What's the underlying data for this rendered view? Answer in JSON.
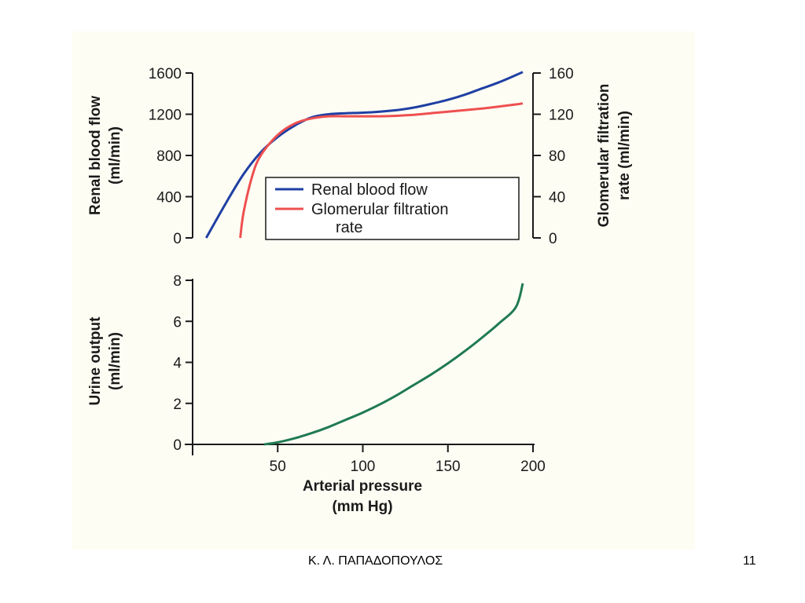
{
  "footer": {
    "author": "Κ. Λ. ΠΑΠΑΔΟΠΟΥΛΟΣ",
    "page_number": "11"
  },
  "chart_data": [
    {
      "type": "line",
      "panel": "top",
      "x_range": [
        0,
        200
      ],
      "ylabel_left": [
        "Renal blood flow",
        "(ml/min)"
      ],
      "ylabel_right": [
        "Glomerular filtration",
        "rate (ml/min)"
      ],
      "ylim_left": [
        0,
        1600
      ],
      "ylim_right": [
        0,
        160
      ],
      "yticks_left": [
        "0",
        "400",
        "800",
        "1200",
        "1600"
      ],
      "yticks_right": [
        "0",
        "40",
        "80",
        "120",
        "160"
      ],
      "legend": {
        "placement": "lower-right",
        "entries": [
          {
            "label_lines": [
              "Renal blood flow"
            ],
            "color": "#1f3fa3"
          },
          {
            "label_lines": [
              "Glomerular filtration",
              "rate"
            ],
            "color": "#ee5050"
          }
        ]
      },
      "series": [
        {
          "name": "Renal blood flow",
          "axis": "left",
          "color": "#1f3fa3",
          "x": [
            8,
            20,
            30,
            40,
            50,
            60,
            70,
            80,
            90,
            100,
            110,
            120,
            130,
            140,
            150,
            160,
            170,
            180,
            190,
            194
          ],
          "y": [
            0,
            350,
            620,
            830,
            980,
            1090,
            1170,
            1200,
            1210,
            1215,
            1225,
            1240,
            1265,
            1300,
            1340,
            1390,
            1450,
            1510,
            1580,
            1610
          ]
        },
        {
          "name": "Glomerular filtration rate",
          "axis": "right",
          "color": "#ee5050",
          "x": [
            28,
            30,
            35,
            40,
            50,
            60,
            70,
            80,
            90,
            100,
            110,
            120,
            130,
            140,
            150,
            160,
            170,
            180,
            190,
            194
          ],
          "y": [
            0,
            25,
            60,
            80,
            100,
            111,
            116,
            118,
            118,
            118,
            118,
            118.5,
            119.5,
            121,
            122.5,
            124,
            125.5,
            127.5,
            129.5,
            130.5
          ]
        }
      ]
    },
    {
      "type": "line",
      "panel": "bottom",
      "x_range": [
        0,
        200
      ],
      "xticks": [
        "50",
        "100",
        "150",
        "200"
      ],
      "xlabel": [
        "Arterial pressure",
        "(mm Hg)"
      ],
      "ylabel": [
        "Urine output",
        "(ml/min)"
      ],
      "ylim": [
        0,
        8
      ],
      "yticks": [
        "0",
        "2",
        "4",
        "6",
        "8"
      ],
      "series": [
        {
          "name": "Urine output",
          "color": "#1f7a52",
          "x": [
            42,
            50,
            60,
            70,
            80,
            90,
            100,
            110,
            120,
            130,
            140,
            150,
            160,
            170,
            180,
            190,
            194
          ],
          "y": [
            0,
            0.1,
            0.3,
            0.55,
            0.85,
            1.2,
            1.55,
            1.95,
            2.4,
            2.9,
            3.4,
            3.95,
            4.55,
            5.2,
            5.9,
            6.7,
            7.85
          ]
        }
      ]
    }
  ]
}
